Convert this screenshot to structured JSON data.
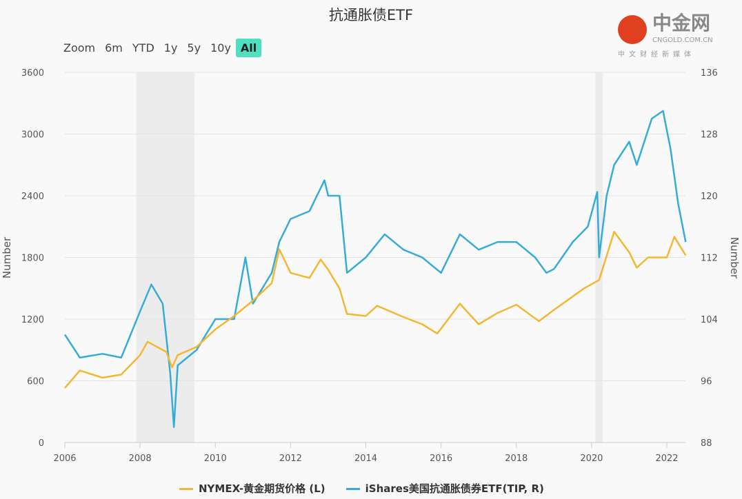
{
  "title": "抗通胀债ETF",
  "zoom": {
    "label": "Zoom",
    "buttons": [
      "6m",
      "YTD",
      "1y",
      "5y",
      "10y",
      "All"
    ],
    "active": "All"
  },
  "chart_data": {
    "type": "line",
    "title": "抗通胀债ETF",
    "xlabel": "",
    "ylabel_left": "Number",
    "ylabel_right": "Number",
    "xlim": [
      2006,
      2022.6
    ],
    "xticks": [
      "2006",
      "2008",
      "2010",
      "2012",
      "2014",
      "2016",
      "2018",
      "2020",
      "2022"
    ],
    "ylim_left": [
      0,
      3600
    ],
    "yticks_left": [
      "0",
      "600",
      "1200",
      "1800",
      "2400",
      "3000",
      "3600"
    ],
    "ylim_right": [
      88,
      136
    ],
    "yticks_right": [
      "88",
      "96",
      "104",
      "112",
      "120",
      "128",
      "136"
    ],
    "grid": true,
    "legend": "bottom",
    "shaded_periods": [
      [
        2007.9,
        2009.45
      ],
      [
        2020.1,
        2020.3
      ]
    ],
    "series": [
      {
        "name": "NYMEX-黄金期货价格 (L)",
        "axis": "left",
        "color": "#f4b731",
        "x": [
          2006.0,
          2006.4,
          2007.0,
          2007.5,
          2008.0,
          2008.2,
          2008.7,
          2008.85,
          2009.0,
          2009.5,
          2010.0,
          2010.5,
          2011.0,
          2011.5,
          2011.7,
          2012.0,
          2012.5,
          2012.8,
          2013.0,
          2013.3,
          2013.5,
          2014.0,
          2014.3,
          2015.0,
          2015.5,
          2015.9,
          2016.5,
          2017.0,
          2017.5,
          2018.0,
          2018.6,
          2019.0,
          2019.5,
          2019.8,
          2020.2,
          2020.6,
          2021.0,
          2021.2,
          2021.5,
          2022.0,
          2022.2,
          2022.5
        ],
        "y": [
          530,
          700,
          630,
          660,
          850,
          980,
          880,
          730,
          850,
          930,
          1100,
          1230,
          1380,
          1550,
          1880,
          1650,
          1600,
          1780,
          1680,
          1500,
          1250,
          1230,
          1330,
          1220,
          1150,
          1060,
          1350,
          1150,
          1260,
          1340,
          1180,
          1290,
          1420,
          1500,
          1580,
          2050,
          1850,
          1700,
          1800,
          1800,
          2000,
          1820
        ]
      },
      {
        "name": "iShares美国抗通胀债券ETF(TIP, R)",
        "axis": "right",
        "color": "#35acd8",
        "x": [
          2006.0,
          2006.4,
          2007.0,
          2007.5,
          2008.0,
          2008.3,
          2008.6,
          2008.8,
          2008.9,
          2009.0,
          2009.5,
          2010.0,
          2010.5,
          2010.8,
          2011.0,
          2011.5,
          2011.7,
          2012.0,
          2012.5,
          2012.9,
          2013.0,
          2013.3,
          2013.5,
          2014.0,
          2014.5,
          2015.0,
          2015.5,
          2016.0,
          2016.5,
          2017.0,
          2017.5,
          2018.0,
          2018.5,
          2018.8,
          2019.0,
          2019.5,
          2019.9,
          2020.15,
          2020.2,
          2020.4,
          2020.6,
          2021.0,
          2021.2,
          2021.6,
          2021.9,
          2022.1,
          2022.3,
          2022.5
        ],
        "y": [
          102,
          99,
          99.5,
          99,
          105,
          108.5,
          106,
          97,
          90,
          98,
          100,
          104,
          104,
          112,
          106,
          110,
          114,
          117,
          118,
          122,
          120,
          120,
          110,
          112,
          115,
          113,
          112,
          110,
          115,
          113,
          114,
          114,
          112,
          110,
          110.5,
          114,
          116,
          120.5,
          112,
          120,
          124,
          127,
          124,
          130,
          131,
          126,
          119,
          114
        ]
      }
    ]
  },
  "legend": [
    "NYMEX-黄金期货价格 (L)",
    "iShares美国抗通胀债券ETF(TIP, R)"
  ],
  "watermark": {
    "name": "中金网",
    "domain": "CNGOLD.COM.CN",
    "tagline": "中文财经新媒体"
  }
}
